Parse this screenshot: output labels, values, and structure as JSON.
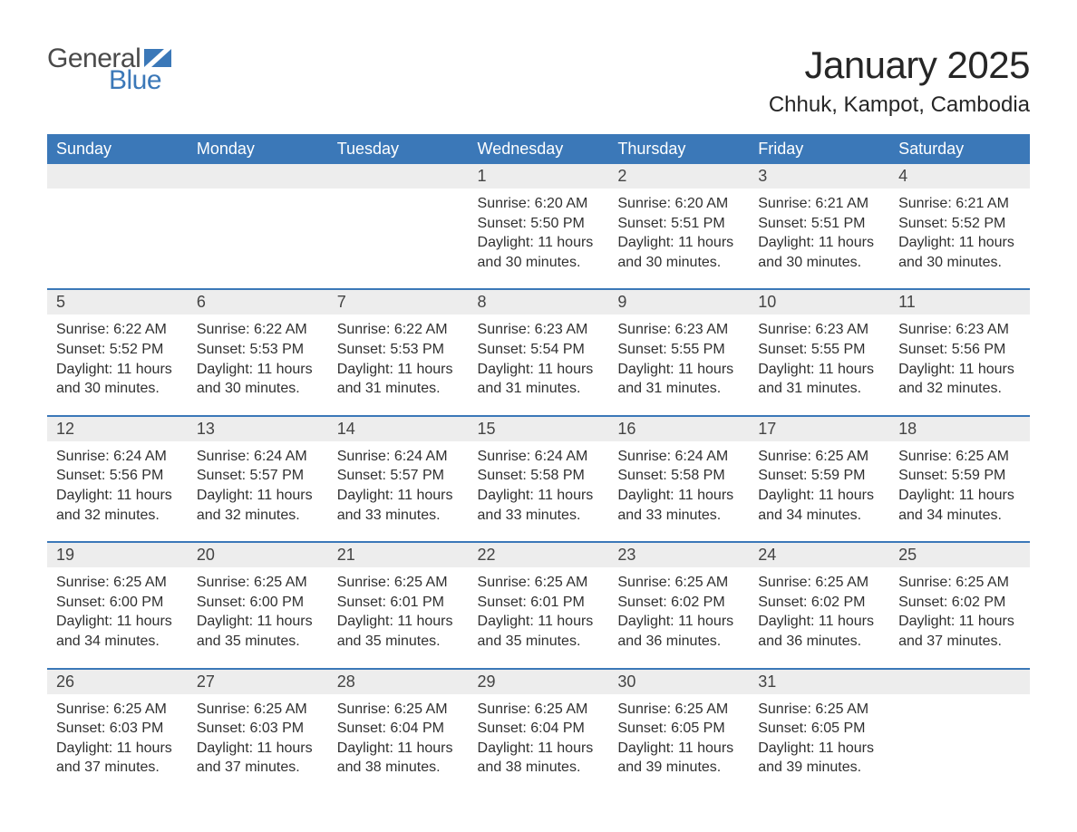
{
  "logo": {
    "text1": "General",
    "text2": "Blue",
    "flag_color": "#3b78b8",
    "text1_color": "#4a4a4a"
  },
  "title": "January 2025",
  "location": "Chhuk, Kampot, Cambodia",
  "colors": {
    "header_bg": "#3b78b8",
    "header_text": "#ffffff",
    "daynum_bg": "#ededed",
    "row_border": "#3b78b8",
    "body_text": "#303030"
  },
  "weekdays": [
    "Sunday",
    "Monday",
    "Tuesday",
    "Wednesday",
    "Thursday",
    "Friday",
    "Saturday"
  ],
  "labels": {
    "sunrise": "Sunrise:",
    "sunset": "Sunset:",
    "daylight": "Daylight:"
  },
  "weeks": [
    [
      null,
      null,
      null,
      {
        "n": "1",
        "sunrise": "6:20 AM",
        "sunset": "5:50 PM",
        "daylight": "11 hours and 30 minutes."
      },
      {
        "n": "2",
        "sunrise": "6:20 AM",
        "sunset": "5:51 PM",
        "daylight": "11 hours and 30 minutes."
      },
      {
        "n": "3",
        "sunrise": "6:21 AM",
        "sunset": "5:51 PM",
        "daylight": "11 hours and 30 minutes."
      },
      {
        "n": "4",
        "sunrise": "6:21 AM",
        "sunset": "5:52 PM",
        "daylight": "11 hours and 30 minutes."
      }
    ],
    [
      {
        "n": "5",
        "sunrise": "6:22 AM",
        "sunset": "5:52 PM",
        "daylight": "11 hours and 30 minutes."
      },
      {
        "n": "6",
        "sunrise": "6:22 AM",
        "sunset": "5:53 PM",
        "daylight": "11 hours and 30 minutes."
      },
      {
        "n": "7",
        "sunrise": "6:22 AM",
        "sunset": "5:53 PM",
        "daylight": "11 hours and 31 minutes."
      },
      {
        "n": "8",
        "sunrise": "6:23 AM",
        "sunset": "5:54 PM",
        "daylight": "11 hours and 31 minutes."
      },
      {
        "n": "9",
        "sunrise": "6:23 AM",
        "sunset": "5:55 PM",
        "daylight": "11 hours and 31 minutes."
      },
      {
        "n": "10",
        "sunrise": "6:23 AM",
        "sunset": "5:55 PM",
        "daylight": "11 hours and 31 minutes."
      },
      {
        "n": "11",
        "sunrise": "6:23 AM",
        "sunset": "5:56 PM",
        "daylight": "11 hours and 32 minutes."
      }
    ],
    [
      {
        "n": "12",
        "sunrise": "6:24 AM",
        "sunset": "5:56 PM",
        "daylight": "11 hours and 32 minutes."
      },
      {
        "n": "13",
        "sunrise": "6:24 AM",
        "sunset": "5:57 PM",
        "daylight": "11 hours and 32 minutes."
      },
      {
        "n": "14",
        "sunrise": "6:24 AM",
        "sunset": "5:57 PM",
        "daylight": "11 hours and 33 minutes."
      },
      {
        "n": "15",
        "sunrise": "6:24 AM",
        "sunset": "5:58 PM",
        "daylight": "11 hours and 33 minutes."
      },
      {
        "n": "16",
        "sunrise": "6:24 AM",
        "sunset": "5:58 PM",
        "daylight": "11 hours and 33 minutes."
      },
      {
        "n": "17",
        "sunrise": "6:25 AM",
        "sunset": "5:59 PM",
        "daylight": "11 hours and 34 minutes."
      },
      {
        "n": "18",
        "sunrise": "6:25 AM",
        "sunset": "5:59 PM",
        "daylight": "11 hours and 34 minutes."
      }
    ],
    [
      {
        "n": "19",
        "sunrise": "6:25 AM",
        "sunset": "6:00 PM",
        "daylight": "11 hours and 34 minutes."
      },
      {
        "n": "20",
        "sunrise": "6:25 AM",
        "sunset": "6:00 PM",
        "daylight": "11 hours and 35 minutes."
      },
      {
        "n": "21",
        "sunrise": "6:25 AM",
        "sunset": "6:01 PM",
        "daylight": "11 hours and 35 minutes."
      },
      {
        "n": "22",
        "sunrise": "6:25 AM",
        "sunset": "6:01 PM",
        "daylight": "11 hours and 35 minutes."
      },
      {
        "n": "23",
        "sunrise": "6:25 AM",
        "sunset": "6:02 PM",
        "daylight": "11 hours and 36 minutes."
      },
      {
        "n": "24",
        "sunrise": "6:25 AM",
        "sunset": "6:02 PM",
        "daylight": "11 hours and 36 minutes."
      },
      {
        "n": "25",
        "sunrise": "6:25 AM",
        "sunset": "6:02 PM",
        "daylight": "11 hours and 37 minutes."
      }
    ],
    [
      {
        "n": "26",
        "sunrise": "6:25 AM",
        "sunset": "6:03 PM",
        "daylight": "11 hours and 37 minutes."
      },
      {
        "n": "27",
        "sunrise": "6:25 AM",
        "sunset": "6:03 PM",
        "daylight": "11 hours and 37 minutes."
      },
      {
        "n": "28",
        "sunrise": "6:25 AM",
        "sunset": "6:04 PM",
        "daylight": "11 hours and 38 minutes."
      },
      {
        "n": "29",
        "sunrise": "6:25 AM",
        "sunset": "6:04 PM",
        "daylight": "11 hours and 38 minutes."
      },
      {
        "n": "30",
        "sunrise": "6:25 AM",
        "sunset": "6:05 PM",
        "daylight": "11 hours and 39 minutes."
      },
      {
        "n": "31",
        "sunrise": "6:25 AM",
        "sunset": "6:05 PM",
        "daylight": "11 hours and 39 minutes."
      },
      null
    ]
  ]
}
